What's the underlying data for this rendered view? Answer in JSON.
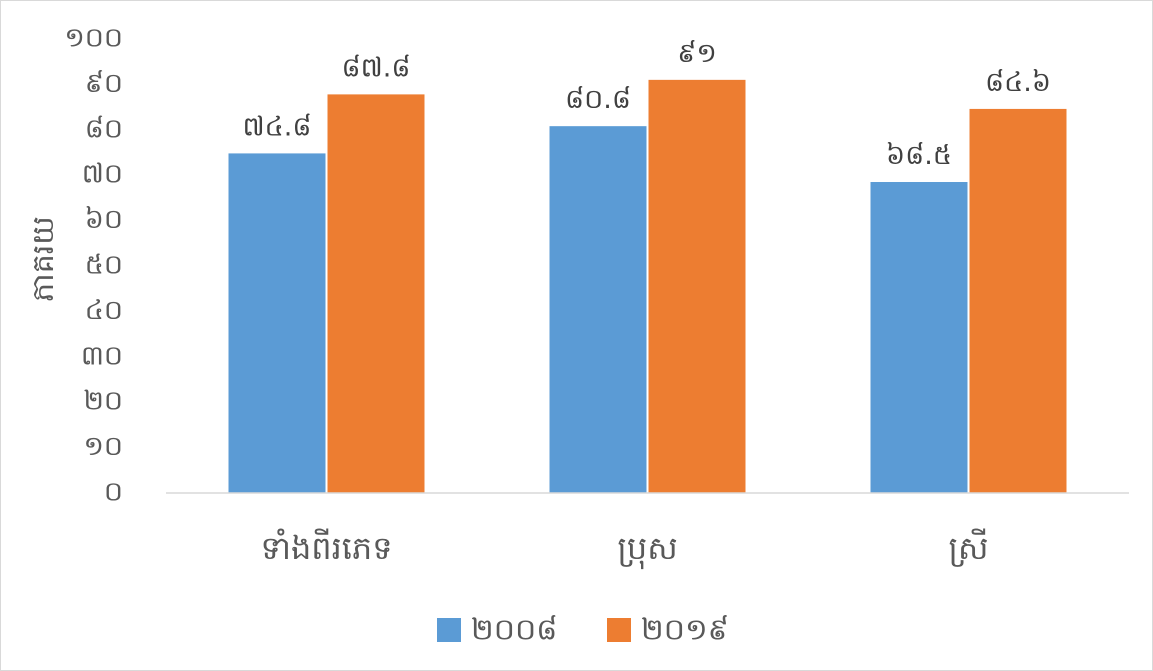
{
  "chart_data": {
    "type": "bar",
    "title": "",
    "ylabel": "ភាគរយ",
    "xlabel": "",
    "ylim": [
      0,
      100
    ],
    "yticks": [
      0,
      10,
      20,
      30,
      40,
      50,
      60,
      70,
      80,
      90,
      100
    ],
    "ytick_labels": [
      "០",
      "១០",
      "២០",
      "៣០",
      "៤០",
      "៥០",
      "៦០",
      "៧០",
      "៨០",
      "៩០",
      "១០០"
    ],
    "categories": [
      "ទាំងពីរភេទ",
      "ប្រុស",
      "ស្រី"
    ],
    "series": [
      {
        "name": "២០០៨",
        "color": "#5b9bd5",
        "values": [
          74.8,
          80.8,
          68.5
        ],
        "labels": [
          "៧៤.៨",
          "៨០.៨",
          "៦៨.៥"
        ]
      },
      {
        "name": "២០១៩",
        "color": "#ed7d31",
        "values": [
          87.8,
          91,
          84.6
        ],
        "labels": [
          "៨៧.៨",
          "៩១",
          "៨៤.៦"
        ]
      }
    ],
    "grid": false,
    "legend_position": "bottom"
  }
}
